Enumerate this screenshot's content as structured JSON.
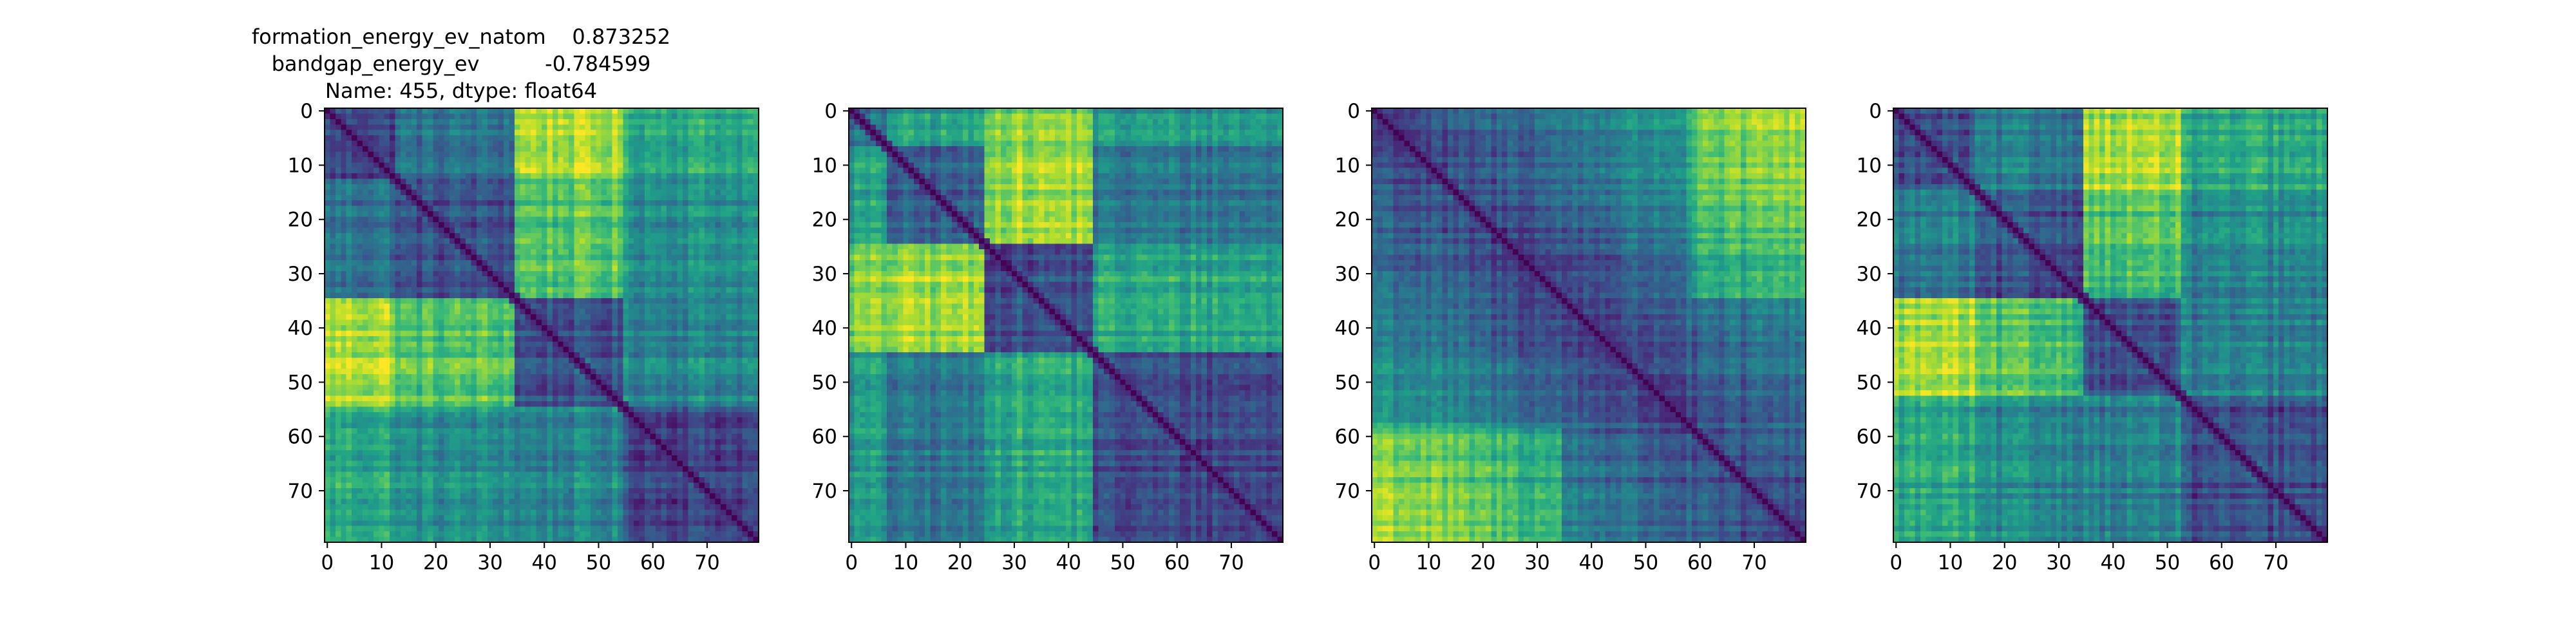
{
  "title_lines": [
    "formation_energy_ev_natom    0.873252",
    "bandgap_energy_ev          -0.784599",
    "Name: 455, dtype: float64"
  ],
  "chart_data": [
    {
      "type": "heatmap",
      "size": 80,
      "colormap": "viridis",
      "xticks": [
        0,
        10,
        20,
        30,
        40,
        50,
        60,
        70
      ],
      "yticks": [
        0,
        10,
        20,
        30,
        40,
        50,
        60,
        70
      ],
      "xlim": [
        -0.5,
        79.5
      ],
      "ylim": [
        79.5,
        -0.5
      ],
      "blocks": [
        0,
        13,
        35,
        55,
        80
      ],
      "block_means": [
        [
          0.22,
          0.38,
          0.88,
          0.62
        ],
        [
          0.38,
          0.24,
          0.72,
          0.5
        ],
        [
          0.88,
          0.72,
          0.24,
          0.46
        ],
        [
          0.62,
          0.5,
          0.46,
          0.22
        ]
      ]
    },
    {
      "type": "heatmap",
      "size": 80,
      "colormap": "viridis",
      "xticks": [
        0,
        10,
        20,
        30,
        40,
        50,
        60,
        70
      ],
      "yticks": [
        0,
        10,
        20,
        30,
        40,
        50,
        60,
        70
      ],
      "xlim": [
        -0.5,
        79.5
      ],
      "ylim": [
        79.5,
        -0.5
      ],
      "blocks": [
        0,
        7,
        25,
        45,
        80
      ],
      "block_means": [
        [
          0.35,
          0.55,
          0.8,
          0.52
        ],
        [
          0.55,
          0.28,
          0.85,
          0.38
        ],
        [
          0.8,
          0.85,
          0.25,
          0.6
        ],
        [
          0.52,
          0.38,
          0.6,
          0.22
        ]
      ]
    },
    {
      "type": "heatmap",
      "size": 80,
      "colormap": "viridis",
      "xticks": [
        0,
        10,
        20,
        30,
        40,
        50,
        60,
        70
      ],
      "yticks": [
        0,
        10,
        20,
        30,
        40,
        50,
        60,
        70
      ],
      "xlim": [
        -0.5,
        79.5
      ],
      "ylim": [
        79.5,
        -0.5
      ],
      "gradient": true
    },
    {
      "type": "heatmap",
      "size": 80,
      "colormap": "viridis",
      "xticks": [
        0,
        10,
        20,
        30,
        40,
        50,
        60,
        70
      ],
      "yticks": [
        0,
        10,
        20,
        30,
        40,
        50,
        60,
        70
      ],
      "xlim": [
        -0.5,
        79.5
      ],
      "ylim": [
        79.5,
        -0.5
      ],
      "blocks": [
        0,
        15,
        35,
        53,
        80
      ],
      "block_means": [
        [
          0.22,
          0.4,
          0.86,
          0.58
        ],
        [
          0.4,
          0.24,
          0.7,
          0.45
        ],
        [
          0.86,
          0.7,
          0.24,
          0.42
        ],
        [
          0.58,
          0.45,
          0.42,
          0.22
        ]
      ]
    }
  ]
}
